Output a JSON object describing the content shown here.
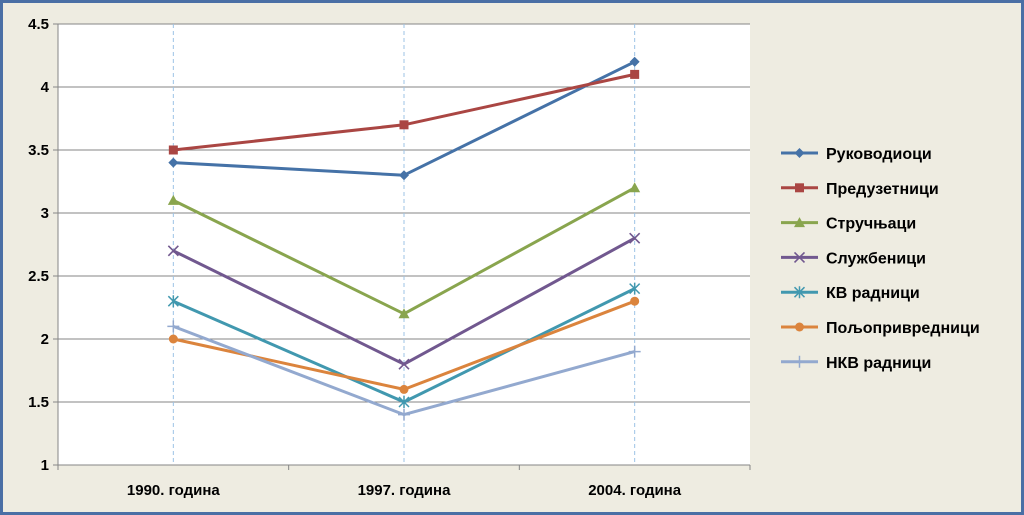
{
  "chart_data": {
    "type": "line",
    "categories": [
      "1990. година",
      "1997. година",
      "2004. година"
    ],
    "ylim": [
      1,
      4.5
    ],
    "yticks": [
      "1",
      "1.5",
      "2",
      "2.5",
      "3",
      "3.5",
      "4",
      "4.5"
    ],
    "grid": true,
    "legend_position": "right",
    "series": [
      {
        "name": "Руководиоци",
        "values": [
          3.4,
          3.3,
          4.2
        ],
        "color": "#4572a7",
        "marker": "diamond"
      },
      {
        "name": "Предузетници",
        "values": [
          3.5,
          3.7,
          4.1
        ],
        "color": "#aa4643",
        "marker": "square"
      },
      {
        "name": "Стручњаци",
        "values": [
          3.1,
          2.2,
          3.2
        ],
        "color": "#89a54e",
        "marker": "triangle"
      },
      {
        "name": "Службеници",
        "values": [
          2.7,
          1.8,
          2.8
        ],
        "color": "#71588f",
        "marker": "x"
      },
      {
        "name": "КВ радници",
        "values": [
          2.3,
          1.5,
          2.4
        ],
        "color": "#4198af",
        "marker": "asterisk"
      },
      {
        "name": "Пољопривредници",
        "values": [
          2.0,
          1.6,
          2.3
        ],
        "color": "#db843d",
        "marker": "circle"
      },
      {
        "name": "НКВ радници",
        "values": [
          2.1,
          1.4,
          1.9
        ],
        "color": "#93a9cf",
        "marker": "plus"
      }
    ]
  }
}
